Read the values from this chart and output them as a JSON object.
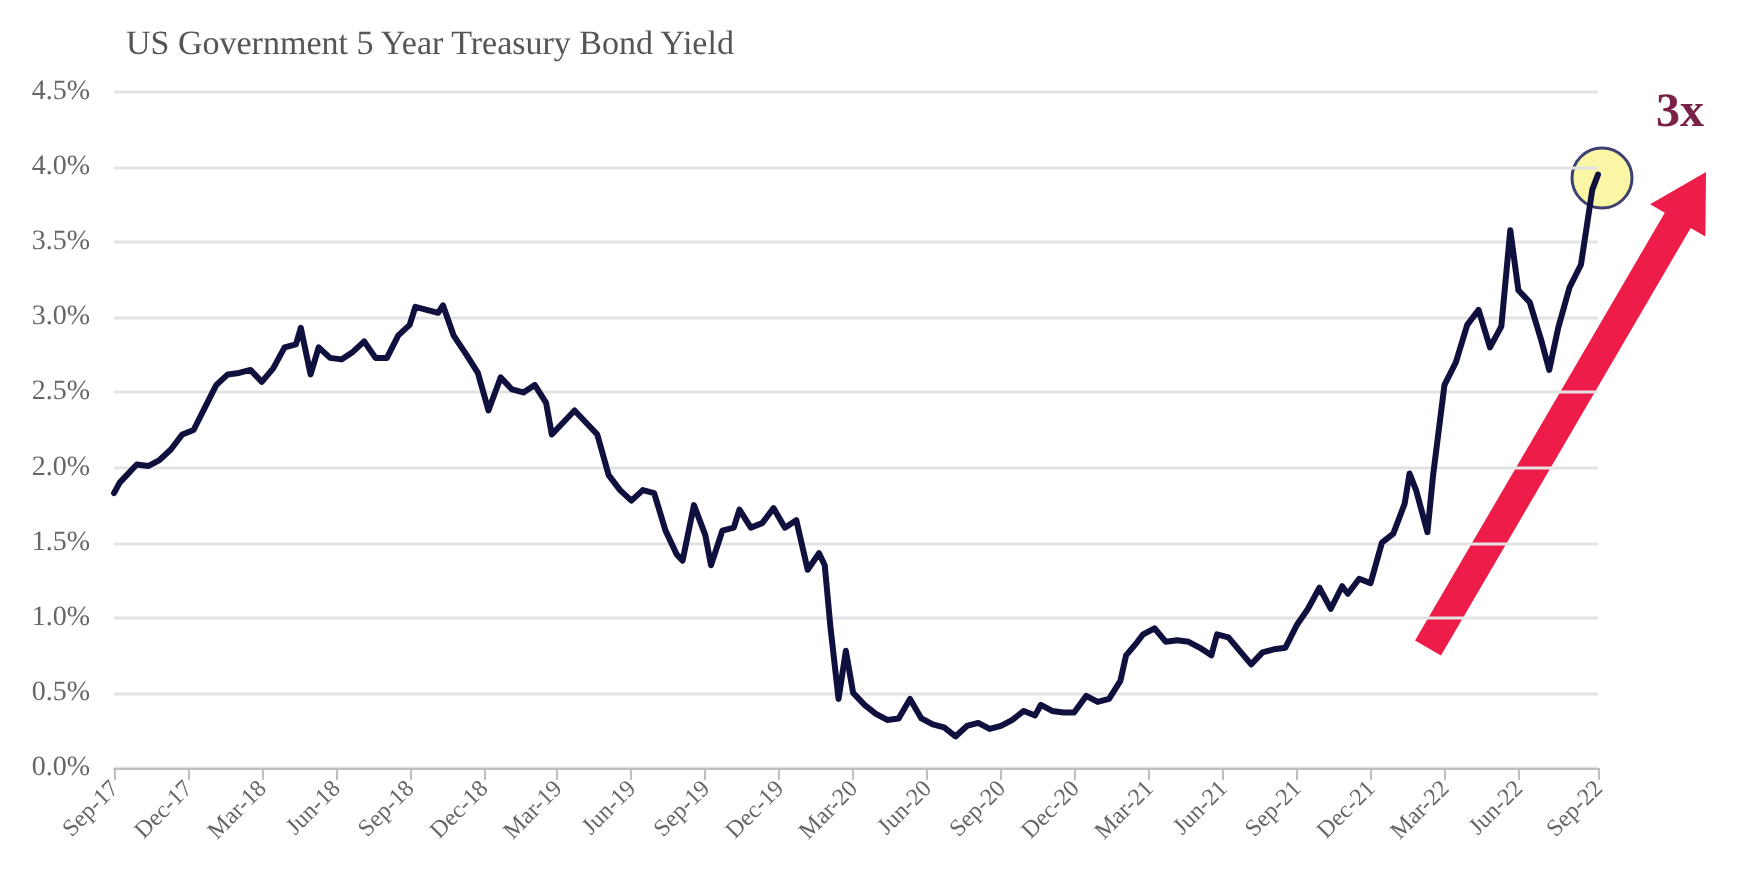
{
  "chart_data": {
    "type": "line",
    "title": "US Government 5 Year Treasury Bond Yield",
    "x": [
      "2017-09-29",
      "2017-10-06",
      "2017-10-13",
      "2017-10-27",
      "2017-11-10",
      "2017-11-24",
      "2017-12-08",
      "2017-12-22",
      "2018-01-05",
      "2018-01-19",
      "2018-02-02",
      "2018-02-16",
      "2018-03-02",
      "2018-03-16",
      "2018-03-30",
      "2018-04-13",
      "2018-04-27",
      "2018-05-11",
      "2018-05-17",
      "2018-05-29",
      "2018-06-08",
      "2018-06-22",
      "2018-07-06",
      "2018-07-20",
      "2018-08-03",
      "2018-08-17",
      "2018-08-31",
      "2018-09-14",
      "2018-09-28",
      "2018-10-05",
      "2018-10-19",
      "2018-11-02",
      "2018-11-08",
      "2018-11-21",
      "2018-12-07",
      "2018-12-21",
      "2019-01-03",
      "2019-01-18",
      "2019-02-01",
      "2019-02-15",
      "2019-03-01",
      "2019-03-15",
      "2019-03-22",
      "2019-04-05",
      "2019-04-19",
      "2019-05-03",
      "2019-05-17",
      "2019-05-31",
      "2019-06-14",
      "2019-06-28",
      "2019-07-12",
      "2019-07-26",
      "2019-08-09",
      "2019-08-23",
      "2019-08-30",
      "2019-09-13",
      "2019-09-27",
      "2019-10-04",
      "2019-10-18",
      "2019-11-01",
      "2019-11-08",
      "2019-11-22",
      "2019-12-06",
      "2019-12-20",
      "2020-01-03",
      "2020-01-17",
      "2020-01-31",
      "2020-02-14",
      "2020-02-21",
      "2020-02-28",
      "2020-03-09",
      "2020-03-18",
      "2020-03-27",
      "2020-04-10",
      "2020-04-24",
      "2020-05-08",
      "2020-05-22",
      "2020-06-05",
      "2020-06-19",
      "2020-07-03",
      "2020-07-17",
      "2020-07-31",
      "2020-08-14",
      "2020-08-28",
      "2020-09-11",
      "2020-09-25",
      "2020-10-09",
      "2020-10-23",
      "2020-11-06",
      "2020-11-13",
      "2020-11-27",
      "2020-12-11",
      "2020-12-24",
      "2021-01-08",
      "2021-01-22",
      "2021-02-05",
      "2021-02-19",
      "2021-02-26",
      "2021-03-12",
      "2021-03-19",
      "2021-04-02",
      "2021-04-16",
      "2021-04-30",
      "2021-05-14",
      "2021-05-28",
      "2021-06-11",
      "2021-06-18",
      "2021-07-02",
      "2021-07-16",
      "2021-07-30",
      "2021-08-13",
      "2021-08-27",
      "2021-09-10",
      "2021-09-24",
      "2021-10-08",
      "2021-10-22",
      "2021-11-05",
      "2021-11-19",
      "2021-11-26",
      "2021-12-10",
      "2021-12-24",
      "2022-01-07",
      "2022-01-21",
      "2022-02-04",
      "2022-02-10",
      "2022-02-18",
      "2022-03-04",
      "2022-03-11",
      "2022-03-25",
      "2022-04-08",
      "2022-04-22",
      "2022-05-06",
      "2022-05-20",
      "2022-06-03",
      "2022-06-14",
      "2022-06-24",
      "2022-07-08",
      "2022-07-22",
      "2022-08-01",
      "2022-08-12",
      "2022-08-26",
      "2022-09-09",
      "2022-09-16",
      "2022-09-23",
      "2022-09-30"
    ],
    "series": [
      {
        "color": "#10103f",
        "values": [
          1.83,
          1.9,
          1.94,
          2.02,
          2.01,
          2.05,
          2.12,
          2.22,
          2.25,
          2.4,
          2.55,
          2.62,
          2.63,
          2.65,
          2.57,
          2.66,
          2.8,
          2.82,
          2.93,
          2.62,
          2.8,
          2.73,
          2.72,
          2.77,
          2.84,
          2.73,
          2.73,
          2.88,
          2.95,
          3.07,
          3.05,
          3.03,
          3.08,
          2.88,
          2.75,
          2.63,
          2.38,
          2.6,
          2.52,
          2.5,
          2.55,
          2.43,
          2.22,
          2.3,
          2.38,
          2.3,
          2.22,
          1.95,
          1.85,
          1.78,
          1.85,
          1.83,
          1.58,
          1.42,
          1.38,
          1.75,
          1.55,
          1.35,
          1.58,
          1.6,
          1.72,
          1.6,
          1.63,
          1.73,
          1.6,
          1.65,
          1.32,
          1.43,
          1.35,
          0.94,
          0.46,
          0.78,
          0.5,
          0.42,
          0.36,
          0.32,
          0.33,
          0.46,
          0.33,
          0.29,
          0.27,
          0.21,
          0.28,
          0.3,
          0.26,
          0.28,
          0.32,
          0.38,
          0.35,
          0.42,
          0.38,
          0.37,
          0.37,
          0.48,
          0.44,
          0.46,
          0.58,
          0.75,
          0.84,
          0.89,
          0.93,
          0.84,
          0.85,
          0.84,
          0.8,
          0.75,
          0.89,
          0.87,
          0.78,
          0.69,
          0.77,
          0.79,
          0.8,
          0.95,
          1.06,
          1.2,
          1.06,
          1.21,
          1.16,
          1.26,
          1.23,
          1.5,
          1.56,
          1.76,
          1.96,
          1.85,
          1.57,
          1.95,
          2.55,
          2.7,
          2.95,
          3.05,
          2.8,
          2.94,
          3.58,
          3.18,
          3.1,
          2.85,
          2.65,
          2.93,
          3.2,
          3.35,
          3.6,
          3.85,
          3.95
        ]
      }
    ],
    "xlim": [
      "2017-09-29",
      "2022-09-30"
    ],
    "xticks": [
      {
        "value": "2017-09-29",
        "label": "Sep-17"
      },
      {
        "value": "2017-12-29",
        "label": "Dec-17"
      },
      {
        "value": "2018-03-30",
        "label": "Mar-18"
      },
      {
        "value": "2018-06-29",
        "label": "Jun-18"
      },
      {
        "value": "2018-09-28",
        "label": "Sep-18"
      },
      {
        "value": "2018-12-28",
        "label": "Dec-18"
      },
      {
        "value": "2019-03-29",
        "label": "Mar-19"
      },
      {
        "value": "2019-06-28",
        "label": "Jun-19"
      },
      {
        "value": "2019-09-27",
        "label": "Sep-19"
      },
      {
        "value": "2019-12-27",
        "label": "Dec-19"
      },
      {
        "value": "2020-03-27",
        "label": "Mar-20"
      },
      {
        "value": "2020-06-26",
        "label": "Jun-20"
      },
      {
        "value": "2020-09-25",
        "label": "Sep-20"
      },
      {
        "value": "2020-12-25",
        "label": "Dec-20"
      },
      {
        "value": "2021-03-26",
        "label": "Mar-21"
      },
      {
        "value": "2021-06-25",
        "label": "Jun-21"
      },
      {
        "value": "2021-09-24",
        "label": "Sep-21"
      },
      {
        "value": "2021-12-24",
        "label": "Dec-21"
      },
      {
        "value": "2022-03-25",
        "label": "Mar-22"
      },
      {
        "value": "2022-06-24",
        "label": "Jun-22"
      },
      {
        "value": "2022-09-30",
        "label": "Sep-22"
      }
    ],
    "ylim": [
      0,
      4.5
    ],
    "yticks": [
      {
        "value": 0,
        "label": "0.0%"
      },
      {
        "value": 0.5,
        "label": "0.5%"
      },
      {
        "value": 1,
        "label": "1.0%"
      },
      {
        "value": 1.5,
        "label": "1.5%"
      },
      {
        "value": 2,
        "label": "2.0%"
      },
      {
        "value": 2.5,
        "label": "2.5%"
      },
      {
        "value": 3,
        "label": "3.0%"
      },
      {
        "value": 3.5,
        "label": "3.5%"
      },
      {
        "value": 4,
        "label": "4.0%"
      },
      {
        "value": 4.5,
        "label": "4.5%"
      }
    ],
    "grid": "y",
    "marker": "none",
    "line_style": "solid",
    "annotations": [
      "3x"
    ]
  }
}
